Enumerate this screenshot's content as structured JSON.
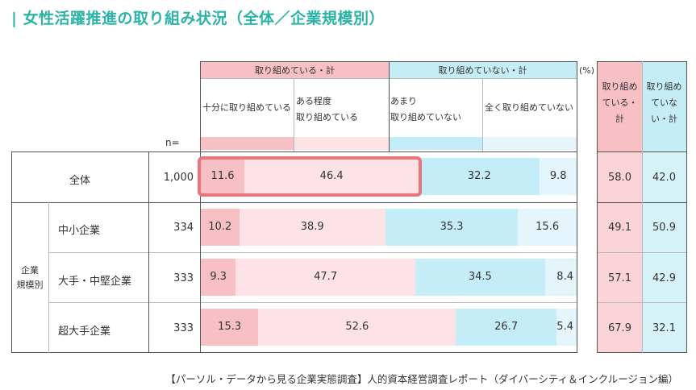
{
  "title": "| 女性活躍推進の取り組み状況（全体／企業規模別）",
  "percent_unit": "(%)",
  "n_label": "n=",
  "group_label_line1": "企業",
  "group_label_line2": "規模別",
  "footer": "【パーソル・データから見る企業実態調査】人的資本経営調査レポート（ダイバーシティ＆インクルージョン編）",
  "header": {
    "group1": "取り組めている・計",
    "group2": "取り組めていない・計",
    "cat1": "十分に取り組めている",
    "cat2_line1": "ある程度",
    "cat2_line2": "取り組めている",
    "cat3_line1": "あまり",
    "cat3_line2": "取り組めていない",
    "cat4": "全く取り組めていない",
    "sum1_line1": "取り組め",
    "sum1_line2": "ている・",
    "sum1_line3": "計",
    "sum2_line1": "取り組め",
    "sum2_line2": "ていな",
    "sum2_line3": "い・計"
  },
  "colors": {
    "cat1": "#f7c0c4",
    "cat2": "#fde3e5",
    "cat3": "#c5edf7",
    "cat4": "#e4f6fb",
    "sum1": "#f7c0c4",
    "sum2": "#c5edf7",
    "highlight": "#e8767c",
    "title": "#2cb3a7"
  },
  "chart_data": {
    "type": "bar",
    "orientation": "horizontal-stacked-100",
    "categories": [
      "十分に取り組めている",
      "ある程度取り組めている",
      "あまり取り組めていない",
      "全く取り組めていない"
    ],
    "rows": [
      {
        "label": "全体",
        "n": "1,000",
        "values": [
          11.6,
          46.4,
          32.2,
          9.8
        ],
        "sum1": "58.0",
        "sum2": "42.0",
        "labels": [
          "11.6",
          "46.4",
          "32.2",
          "9.8"
        ]
      },
      {
        "label": "中小企業",
        "n": "334",
        "values": [
          10.2,
          38.9,
          35.3,
          15.6
        ],
        "sum1": "49.1",
        "sum2": "50.9",
        "labels": [
          "10.2",
          "38.9",
          "35.3",
          "15.6"
        ]
      },
      {
        "label": "大手・中堅企業",
        "n": "333",
        "values": [
          9.3,
          47.7,
          34.5,
          8.4
        ],
        "sum1": "57.1",
        "sum2": "42.9",
        "labels": [
          "9.3",
          "47.7",
          "34.5",
          "8.4"
        ]
      },
      {
        "label": "超大手企業",
        "n": "333",
        "values": [
          15.3,
          52.6,
          26.7,
          5.4
        ],
        "sum1": "67.9",
        "sum2": "32.1",
        "labels": [
          "15.3",
          "52.6",
          "26.7",
          "5.4"
        ]
      }
    ],
    "highlight": {
      "row": 0,
      "series": [
        0,
        1
      ]
    }
  }
}
